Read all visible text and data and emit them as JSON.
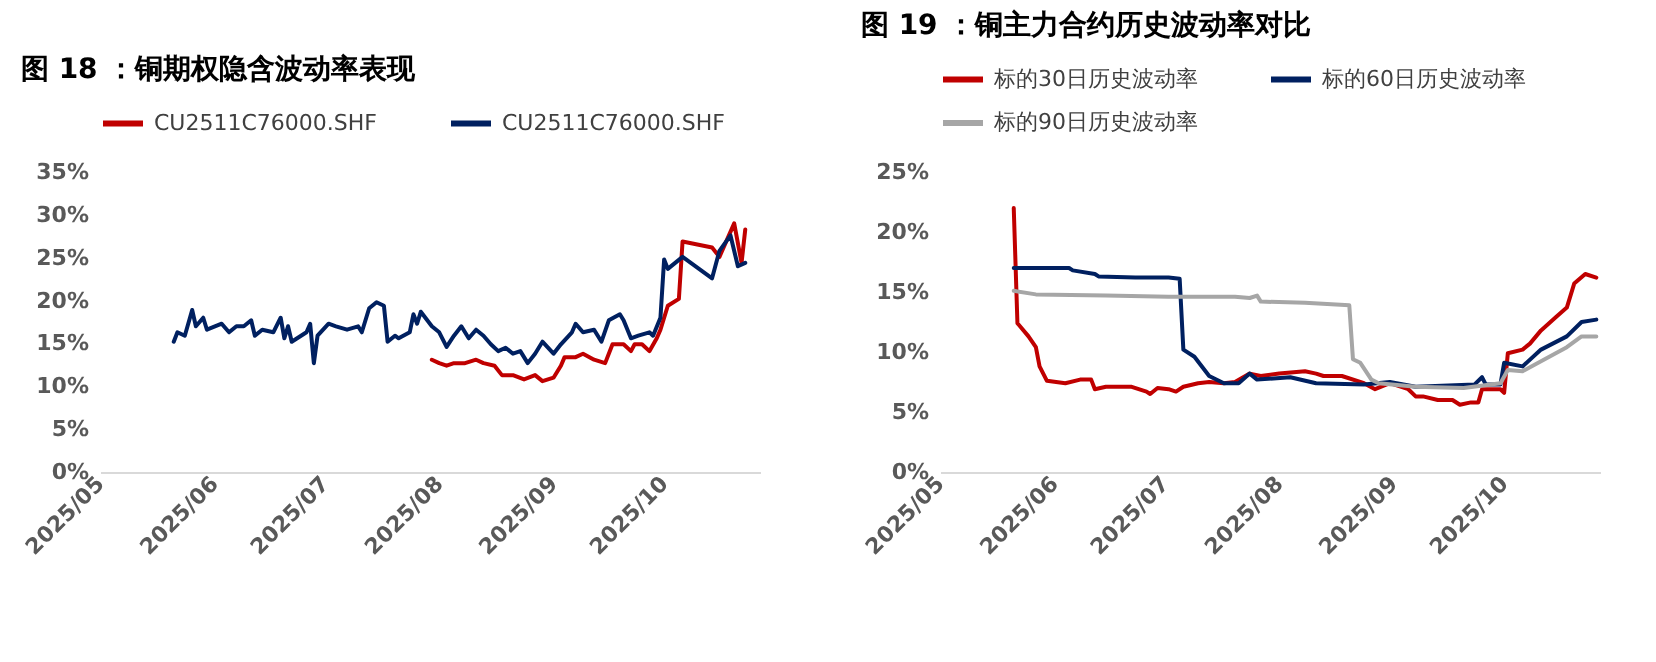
{
  "chart_data": [
    {
      "type": "line",
      "title": "图 18 ：铜期权隐含波动率表现",
      "legend": "top",
      "xlim": [
        "2025-05-01",
        "2025-10-27"
      ],
      "xticks": [
        {
          "value": "2025-05",
          "label": "2025/05"
        },
        {
          "value": "2025-06",
          "label": "2025/06"
        },
        {
          "value": "2025-07",
          "label": "2025/07"
        },
        {
          "value": "2025-08",
          "label": "2025/08"
        },
        {
          "value": "2025-09",
          "label": "2025/09"
        },
        {
          "value": "2025-10",
          "label": "2025/10"
        }
      ],
      "ylim": [
        0,
        35
      ],
      "yticks": [
        {
          "value": 0,
          "label": "0%"
        },
        {
          "value": 5,
          "label": "5%"
        },
        {
          "value": 10,
          "label": "10%"
        },
        {
          "value": 15,
          "label": "15%"
        },
        {
          "value": 20,
          "label": "20%"
        },
        {
          "value": 25,
          "label": "25%"
        },
        {
          "value": 30,
          "label": "30%"
        },
        {
          "value": 35,
          "label": "35%"
        }
      ],
      "series": [
        {
          "name": "CU2511C76000.SHF",
          "color": "#c00000",
          "x": [
            "2025-07-30",
            "2025-08-01",
            "2025-08-03",
            "2025-08-05",
            "2025-08-08",
            "2025-08-11",
            "2025-08-13",
            "2025-08-16",
            "2025-08-18",
            "2025-08-21",
            "2025-08-24",
            "2025-08-27",
            "2025-08-29",
            "2025-09-01",
            "2025-09-03",
            "2025-09-04",
            "2025-09-07",
            "2025-09-09",
            "2025-09-12",
            "2025-09-15",
            "2025-09-17",
            "2025-09-20",
            "2025-09-22",
            "2025-09-23",
            "2025-09-25",
            "2025-09-27",
            "2025-09-29",
            "2025-09-30",
            "2025-10-02",
            "2025-10-05",
            "2025-10-06",
            "2025-10-14",
            "2025-10-16",
            "2025-10-20",
            "2025-10-22",
            "2025-10-23"
          ],
          "values": [
            13.1,
            12.7,
            12.4,
            12.7,
            12.7,
            13.1,
            12.7,
            12.4,
            11.3,
            11.3,
            10.8,
            11.3,
            10.6,
            11.0,
            12.4,
            13.4,
            13.4,
            13.8,
            13.1,
            12.7,
            14.9,
            14.9,
            14.1,
            14.9,
            14.9,
            14.1,
            15.6,
            16.6,
            19.4,
            20.2,
            26.9,
            26.2,
            25.1,
            29.0,
            24.4,
            28.3
          ]
        },
        {
          "name": "CU2511C76000.SHF",
          "color": "#002060",
          "x": [
            "2025-05-21",
            "2025-05-22",
            "2025-05-24",
            "2025-05-26",
            "2025-05-27",
            "2025-05-29",
            "2025-05-30",
            "2025-06-03",
            "2025-06-05",
            "2025-06-07",
            "2025-06-09",
            "2025-06-11",
            "2025-06-12",
            "2025-06-14",
            "2025-06-17",
            "2025-06-19",
            "2025-06-20",
            "2025-06-21",
            "2025-06-22",
            "2025-06-26",
            "2025-06-27",
            "2025-06-28",
            "2025-06-29",
            "2025-07-02",
            "2025-07-04",
            "2025-07-07",
            "2025-07-10",
            "2025-07-11",
            "2025-07-13",
            "2025-07-15",
            "2025-07-17",
            "2025-07-18",
            "2025-07-20",
            "2025-07-21",
            "2025-07-24",
            "2025-07-25",
            "2025-07-26",
            "2025-07-27",
            "2025-07-30",
            "2025-08-01",
            "2025-08-03",
            "2025-08-05",
            "2025-08-07",
            "2025-08-09",
            "2025-08-11",
            "2025-08-13",
            "2025-08-15",
            "2025-08-17",
            "2025-08-19",
            "2025-08-21",
            "2025-08-23",
            "2025-08-25",
            "2025-08-27",
            "2025-08-29",
            "2025-09-01",
            "2025-09-03",
            "2025-09-06",
            "2025-09-07",
            "2025-09-09",
            "2025-09-12",
            "2025-09-14",
            "2025-09-16",
            "2025-09-19",
            "2025-09-20",
            "2025-09-22",
            "2025-09-24",
            "2025-09-27",
            "2025-09-28",
            "2025-09-30",
            "2025-10-01",
            "2025-10-02",
            "2025-10-06",
            "2025-10-14",
            "2025-10-16",
            "2025-10-19",
            "2025-10-21",
            "2025-10-23"
          ],
          "values": [
            15.2,
            16.3,
            15.9,
            18.9,
            17.0,
            18.0,
            16.6,
            17.3,
            16.3,
            17.0,
            17.0,
            17.7,
            15.9,
            16.6,
            16.3,
            18.0,
            15.6,
            17.0,
            15.2,
            16.3,
            17.3,
            12.7,
            15.9,
            17.3,
            17.0,
            16.6,
            17.0,
            16.3,
            19.1,
            19.8,
            19.4,
            15.2,
            15.9,
            15.6,
            16.3,
            18.4,
            17.3,
            18.7,
            17.0,
            16.3,
            14.6,
            15.9,
            17.0,
            15.6,
            16.6,
            15.9,
            14.9,
            14.1,
            14.5,
            13.8,
            14.1,
            12.7,
            13.8,
            15.2,
            13.8,
            14.9,
            16.3,
            17.3,
            16.3,
            16.6,
            15.2,
            17.7,
            18.4,
            17.7,
            15.6,
            15.9,
            16.3,
            15.9,
            18.0,
            24.8,
            23.7,
            25.1,
            22.6,
            25.8,
            27.6,
            24.0,
            24.4
          ]
        }
      ]
    },
    {
      "type": "line",
      "title": "图 19 ：铜主力合约历史波动率对比",
      "legend": "top",
      "xlim": [
        "2025-05-01",
        "2025-10-27"
      ],
      "xticks": [
        {
          "value": "2025-05",
          "label": "2025/05"
        },
        {
          "value": "2025-06",
          "label": "2025/06"
        },
        {
          "value": "2025-07",
          "label": "2025/07"
        },
        {
          "value": "2025-08",
          "label": "2025/08"
        },
        {
          "value": "2025-09",
          "label": "2025/09"
        },
        {
          "value": "2025-10",
          "label": "2025/10"
        }
      ],
      "ylim": [
        0,
        25
      ],
      "yticks": [
        {
          "value": 0,
          "label": "0%"
        },
        {
          "value": 5,
          "label": "5%"
        },
        {
          "value": 10,
          "label": "10%"
        },
        {
          "value": 15,
          "label": "15%"
        },
        {
          "value": 20,
          "label": "20%"
        },
        {
          "value": 25,
          "label": "25%"
        }
      ],
      "series": [
        {
          "name": "标的30日历史波动率",
          "color": "#c00000",
          "x": [
            "2025-05-21",
            "2025-05-22",
            "2025-05-25",
            "2025-05-27",
            "2025-05-28",
            "2025-05-30",
            "2025-06-04",
            "2025-06-08",
            "2025-06-11",
            "2025-06-12",
            "2025-06-15",
            "2025-06-22",
            "2025-06-26",
            "2025-06-27",
            "2025-06-29",
            "2025-07-02",
            "2025-07-04",
            "2025-07-06",
            "2025-07-10",
            "2025-07-13",
            "2025-07-17",
            "2025-07-20",
            "2025-07-24",
            "2025-07-27",
            "2025-08-01",
            "2025-08-08",
            "2025-08-11",
            "2025-08-13",
            "2025-08-18",
            "2025-08-24",
            "2025-08-27",
            "2025-08-31",
            "2025-09-05",
            "2025-09-07",
            "2025-09-09",
            "2025-09-13",
            "2025-09-17",
            "2025-09-19",
            "2025-09-22",
            "2025-09-24",
            "2025-09-25",
            "2025-09-30",
            "2025-10-01",
            "2025-10-02",
            "2025-10-06",
            "2025-10-08",
            "2025-10-11",
            "2025-10-15",
            "2025-10-18",
            "2025-10-20",
            "2025-10-23",
            "2025-10-26"
          ],
          "values": [
            22.0,
            12.4,
            11.3,
            10.4,
            8.8,
            7.6,
            7.4,
            7.7,
            7.7,
            6.9,
            7.1,
            7.1,
            6.7,
            6.5,
            7.0,
            6.9,
            6.7,
            7.1,
            7.4,
            7.5,
            7.4,
            7.5,
            8.2,
            8.0,
            8.2,
            8.4,
            8.2,
            8.0,
            8.0,
            7.4,
            6.9,
            7.4,
            6.9,
            6.3,
            6.3,
            6.0,
            6.0,
            5.6,
            5.8,
            5.8,
            6.9,
            6.9,
            6.6,
            9.9,
            10.2,
            10.7,
            11.8,
            12.9,
            13.7,
            15.7,
            16.5,
            16.2
          ]
        },
        {
          "name": "标的60日历史波动率",
          "color": "#002060",
          "x": [
            "2025-05-21",
            "2025-06-05",
            "2025-06-06",
            "2025-06-12",
            "2025-06-13",
            "2025-06-23",
            "2025-07-02",
            "2025-07-05",
            "2025-07-06",
            "2025-07-09",
            "2025-07-13",
            "2025-07-17",
            "2025-07-21",
            "2025-07-24",
            "2025-07-26",
            "2025-08-04",
            "2025-08-11",
            "2025-08-24",
            "2025-08-31",
            "2025-09-07",
            "2025-09-23",
            "2025-09-25",
            "2025-09-26",
            "2025-09-30",
            "2025-10-01",
            "2025-10-06",
            "2025-10-11",
            "2025-10-18",
            "2025-10-22",
            "2025-10-26"
          ],
          "values": [
            17.0,
            17.0,
            16.8,
            16.5,
            16.3,
            16.2,
            16.2,
            16.1,
            10.2,
            9.6,
            8.0,
            7.4,
            7.4,
            8.2,
            7.7,
            7.9,
            7.4,
            7.3,
            7.5,
            7.1,
            7.3,
            7.9,
            7.3,
            7.3,
            9.1,
            8.8,
            10.2,
            11.3,
            12.5,
            12.7
          ]
        },
        {
          "name": "标的90日历史波动率",
          "color": "#a6a6a6",
          "x": [
            "2025-05-21",
            "2025-05-27",
            "2025-06-15",
            "2025-07-02",
            "2025-07-20",
            "2025-07-24",
            "2025-07-26",
            "2025-07-27",
            "2025-08-08",
            "2025-08-20",
            "2025-08-21",
            "2025-08-23",
            "2025-08-26",
            "2025-08-28",
            "2025-09-07",
            "2025-09-20",
            "2025-09-30",
            "2025-10-02",
            "2025-10-06",
            "2025-10-15",
            "2025-10-18",
            "2025-10-22",
            "2025-10-26"
          ],
          "values": [
            15.1,
            14.8,
            14.7,
            14.6,
            14.6,
            14.5,
            14.7,
            14.2,
            14.1,
            13.9,
            9.4,
            9.1,
            7.7,
            7.4,
            7.1,
            7.0,
            7.4,
            8.5,
            8.4,
            9.9,
            10.4,
            11.3,
            11.3
          ]
        }
      ]
    }
  ]
}
